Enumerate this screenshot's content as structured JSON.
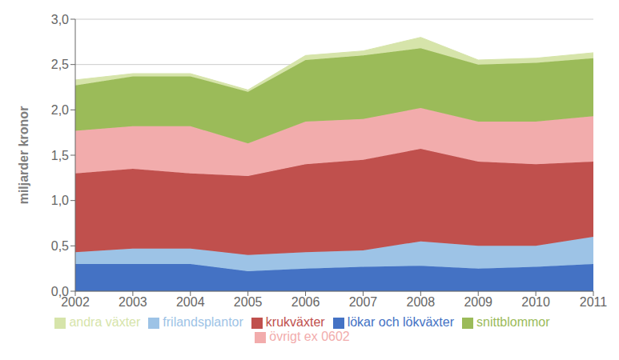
{
  "chart_data": {
    "type": "area",
    "stacked": true,
    "ylabel": "miljarder kronor",
    "x": [
      2002,
      2003,
      2004,
      2005,
      2006,
      2007,
      2008,
      2009,
      2010,
      2011
    ],
    "xlim": [
      2002,
      2011
    ],
    "xticks": [
      2002,
      2003,
      2004,
      2005,
      2006,
      2007,
      2008,
      2009,
      2010,
      2011
    ],
    "ylim": [
      0,
      3.0
    ],
    "yticks": [
      {
        "value": 0.0,
        "label": "0,0"
      },
      {
        "value": 0.5,
        "label": "0,5"
      },
      {
        "value": 1.0,
        "label": "1,0"
      },
      {
        "value": 1.5,
        "label": "1,5"
      },
      {
        "value": 2.0,
        "label": "2,0"
      },
      {
        "value": 2.5,
        "label": "2,5"
      },
      {
        "value": 3.0,
        "label": "3,0"
      }
    ],
    "grid": true,
    "legend": "bottom",
    "series": [
      {
        "name": "lökar och lökväxter",
        "color": "#4472C4",
        "values": [
          0.3,
          0.3,
          0.3,
          0.22,
          0.25,
          0.27,
          0.28,
          0.25,
          0.27,
          0.3
        ]
      },
      {
        "name": "frilandsplantor",
        "color": "#9DC3E6",
        "values": [
          0.13,
          0.17,
          0.17,
          0.18,
          0.18,
          0.18,
          0.27,
          0.25,
          0.23,
          0.3
        ]
      },
      {
        "name": "krukväxter",
        "color": "#C0504D",
        "values": [
          0.87,
          0.88,
          0.83,
          0.87,
          0.97,
          1.0,
          1.02,
          0.93,
          0.9,
          0.83
        ]
      },
      {
        "name": "övrigt ex 0602",
        "color": "#F2ACAC",
        "values": [
          0.47,
          0.47,
          0.52,
          0.36,
          0.47,
          0.45,
          0.45,
          0.44,
          0.47,
          0.5
        ]
      },
      {
        "name": "snittblommor",
        "color": "#9BBB59",
        "values": [
          0.5,
          0.55,
          0.55,
          0.57,
          0.68,
          0.7,
          0.66,
          0.63,
          0.65,
          0.64
        ]
      },
      {
        "name": "andra växter",
        "color": "#D6E4AA",
        "values": [
          0.06,
          0.03,
          0.03,
          0.02,
          0.05,
          0.05,
          0.12,
          0.05,
          0.05,
          0.06
        ]
      }
    ]
  }
}
